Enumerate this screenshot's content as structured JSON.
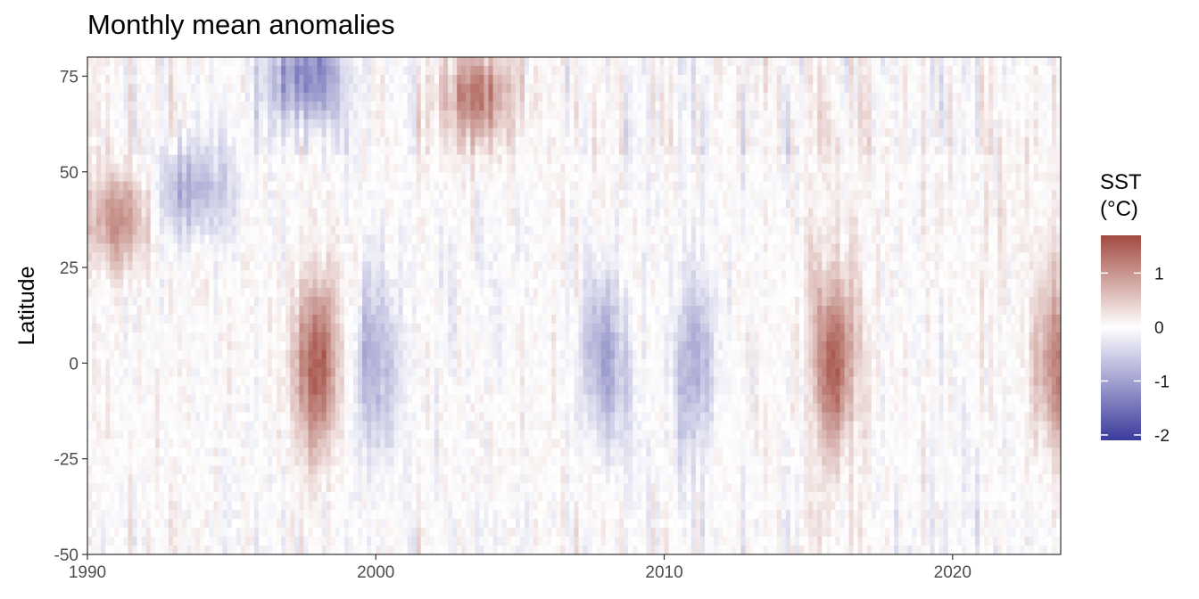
{
  "chart_data": {
    "type": "heatmap",
    "title": "Monthly mean anomalies",
    "xlabel": "",
    "ylabel": "Latitude",
    "x_range": [
      1990,
      2023.75
    ],
    "y_range": [
      -50,
      80
    ],
    "x_ticks": [
      1990,
      2000,
      2010,
      2020
    ],
    "y_ticks": [
      -50,
      -25,
      0,
      25,
      50,
      75
    ],
    "legend": {
      "title_lines": [
        "SST",
        "(°C)"
      ],
      "position": "right",
      "range": [
        -2.1,
        1.7
      ],
      "ticks": [
        1,
        0,
        -1,
        -2
      ],
      "colors": {
        "low": "#3b3b9c",
        "mid": "#ffffff",
        "high": "#a24a40"
      }
    },
    "notable_features": [
      {
        "year": 1998.0,
        "lat": 0,
        "anomaly": 1.6
      },
      {
        "year": 2015.9,
        "lat": 0,
        "anomaly": 1.4
      },
      {
        "year": 2023.7,
        "lat": 0,
        "anomaly": 1.2
      },
      {
        "year": 2000.0,
        "lat": 0,
        "anomaly": -0.9
      },
      {
        "year": 2008.0,
        "lat": 0,
        "anomaly": -0.9
      },
      {
        "year": 2011.0,
        "lat": 0,
        "anomaly": -0.8
      },
      {
        "year": 1991.0,
        "lat": 38,
        "anomaly": 1.0
      },
      {
        "year": 2003.5,
        "lat": 70,
        "anomaly": 1.2
      },
      {
        "year": 1997.5,
        "lat": 75,
        "anomaly": -1.3
      },
      {
        "year": 1993.5,
        "lat": 45,
        "anomaly": -0.9
      }
    ]
  }
}
